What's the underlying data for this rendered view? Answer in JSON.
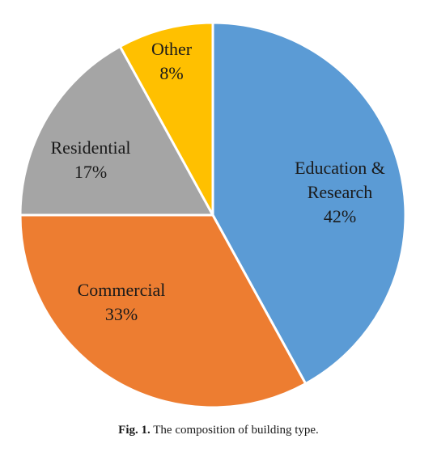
{
  "chart_data": {
    "type": "pie",
    "slices": [
      {
        "name": "Education &",
        "name_line2": "Research",
        "value": 42,
        "label": "42%",
        "color": "#5b9bd5"
      },
      {
        "name": "Commercial",
        "value": 33,
        "label": "33%",
        "color": "#ed7d31"
      },
      {
        "name": "Residential",
        "value": 17,
        "label": "17%",
        "color": "#a5a5a5"
      },
      {
        "name": "Other",
        "value": 8,
        "label": "8%",
        "color": "#ffc000"
      }
    ],
    "start_angle_deg": 0,
    "direction": "clockwise",
    "slice_border_color": "#ffffff"
  },
  "caption": {
    "fig_num": "Fig. 1.",
    "text": "The composition of building type."
  }
}
